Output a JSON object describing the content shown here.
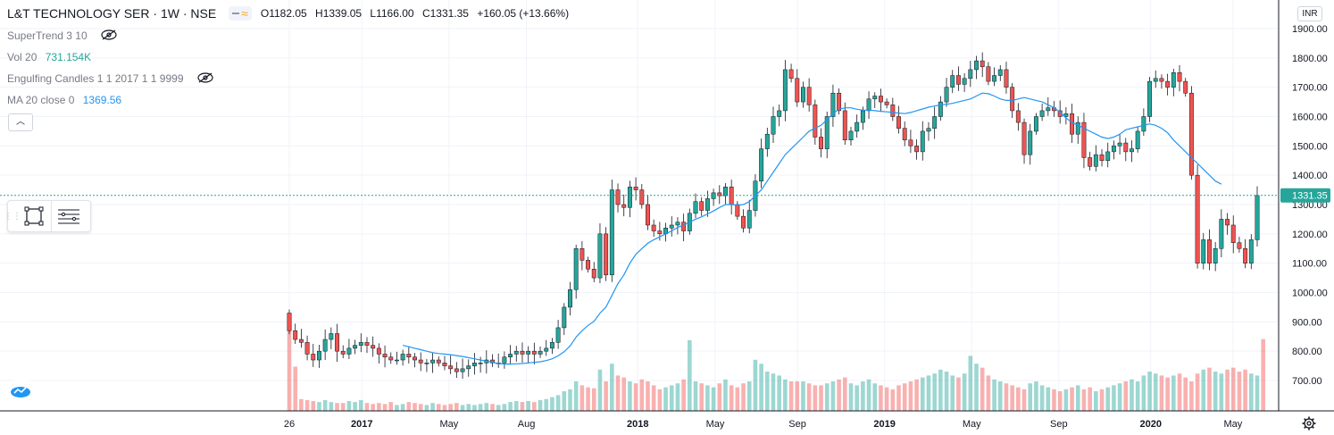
{
  "header": {
    "symbol": "L&T TECHNOLOGY SER · 1W · NSE",
    "ohlc": {
      "open": "O1182.05",
      "high": "H1339.05",
      "low": "L1166.00",
      "close": "C1331.35",
      "change": "+160.05 (+13.66%)"
    }
  },
  "indicators": [
    {
      "name": "SuperTrend 3 10",
      "value": "",
      "hidden": true
    },
    {
      "name": "Vol 20",
      "value": "731.154K",
      "hidden": false,
      "color": "#26a69a"
    },
    {
      "name": "Engulfing Candles 1 1 2017 1 1 9999",
      "value": "",
      "hidden": true
    },
    {
      "name": "MA 20 close 0",
      "value": "1369.56",
      "hidden": false,
      "color": "#2196f3"
    }
  ],
  "currency": "INR",
  "last_price_label": "1331.35",
  "colors": {
    "up": "#26a69a",
    "down": "#ef5350",
    "ma": "#2196f3",
    "grid": "#f0f3fa",
    "axis": "#131722"
  },
  "chart_data": {
    "type": "candlestick",
    "interval": "1W",
    "ylim": [
      600,
      1900
    ],
    "yticks": [
      "1900.00",
      "1800.00",
      "1700.00",
      "1600.00",
      "1500.00",
      "1400.00",
      "1300.00",
      "1200.00",
      "1100.00",
      "1000.00",
      "900.00",
      "800.00",
      "700.00"
    ],
    "xticks": [
      "26",
      "2017",
      "May",
      "Aug",
      "2018",
      "May",
      "Sep",
      "2019",
      "May",
      "Sep",
      "2020",
      "May"
    ],
    "close_series": [
      870,
      840,
      830,
      790,
      770,
      800,
      840,
      860,
      800,
      790,
      810,
      820,
      830,
      820,
      810,
      790,
      780,
      770,
      770,
      790,
      780,
      770,
      760,
      760,
      770,
      760,
      750,
      740,
      730,
      740,
      750,
      760,
      760,
      770,
      760,
      760,
      780,
      790,
      800,
      790,
      800,
      790,
      800,
      810,
      830,
      880,
      950,
      1010,
      1150,
      1110,
      1080,
      1050,
      1200,
      1060,
      1350,
      1300,
      1290,
      1360,
      1350,
      1300,
      1230,
      1210,
      1200,
      1220,
      1230,
      1240,
      1210,
      1270,
      1310,
      1280,
      1320,
      1340,
      1330,
      1360,
      1300,
      1260,
      1220,
      1280,
      1380,
      1490,
      1540,
      1600,
      1620,
      1760,
      1730,
      1650,
      1700,
      1640,
      1530,
      1490,
      1600,
      1680,
      1620,
      1520,
      1550,
      1580,
      1620,
      1660,
      1670,
      1650,
      1640,
      1600,
      1560,
      1520,
      1500,
      1480,
      1550,
      1560,
      1600,
      1650,
      1700,
      1740,
      1710,
      1730,
      1760,
      1790,
      1770,
      1720,
      1740,
      1760,
      1700,
      1620,
      1580,
      1470,
      1550,
      1600,
      1620,
      1630,
      1620,
      1600,
      1610,
      1540,
      1580,
      1460,
      1430,
      1470,
      1450,
      1480,
      1500,
      1510,
      1480,
      1490,
      1550,
      1600,
      1720,
      1730,
      1720,
      1700,
      1750,
      1720,
      1680,
      1400,
      1100,
      1180,
      1100,
      1150,
      1250,
      1230,
      1170,
      1150,
      1100,
      1180,
      1331
    ],
    "ma_series": [
      null,
      null,
      null,
      null,
      null,
      null,
      null,
      null,
      null,
      null,
      null,
      null,
      null,
      null,
      null,
      null,
      null,
      null,
      null,
      820,
      815,
      810,
      805,
      800,
      795,
      792,
      790,
      788,
      785,
      782,
      778,
      774,
      770,
      766,
      762,
      758,
      756,
      756,
      757,
      758,
      760,
      762,
      764,
      768,
      774,
      784,
      798,
      818,
      848,
      870,
      888,
      902,
      930,
      950,
      990,
      1030,
      1060,
      1100,
      1130,
      1150,
      1168,
      1180,
      1190,
      1200,
      1210,
      1222,
      1230,
      1240,
      1250,
      1258,
      1268,
      1278,
      1290,
      1300,
      1300,
      1298,
      1300,
      1310,
      1330,
      1350,
      1380,
      1410,
      1440,
      1470,
      1490,
      1510,
      1530,
      1550,
      1560,
      1570,
      1590,
      1610,
      1625,
      1630,
      1630,
      1625,
      1622,
      1622,
      1620,
      1618,
      1616,
      1614,
      1612,
      1610,
      1614,
      1620,
      1626,
      1632,
      1636,
      1640,
      1642,
      1645,
      1650,
      1655,
      1660,
      1670,
      1680,
      1678,
      1670,
      1660,
      1655,
      1655,
      1660,
      1665,
      1660,
      1655,
      1650,
      1640,
      1630,
      1615,
      1595,
      1580,
      1570,
      1560,
      1550,
      1540,
      1530,
      1525,
      1530,
      1540,
      1555,
      1560,
      1565,
      1570,
      1575,
      1570,
      1560,
      1545,
      1520,
      1500,
      1480,
      1460,
      1440,
      1420,
      1400,
      1380,
      1369.56
    ],
    "volume_series_k": [
      950,
      450,
      120,
      110,
      100,
      90,
      110,
      90,
      80,
      80,
      100,
      90,
      110,
      80,
      70,
      80,
      70,
      90,
      60,
      70,
      90,
      80,
      70,
      60,
      80,
      70,
      60,
      70,
      80,
      60,
      70,
      60,
      70,
      80,
      70,
      60,
      70,
      90,
      100,
      90,
      100,
      90,
      110,
      120,
      140,
      160,
      200,
      220,
      300,
      260,
      240,
      230,
      420,
      300,
      480,
      360,
      340,
      300,
      280,
      320,
      300,
      260,
      220,
      240,
      260,
      280,
      320,
      720,
      300,
      280,
      260,
      240,
      280,
      320,
      260,
      240,
      280,
      300,
      520,
      480,
      400,
      380,
      360,
      320,
      300,
      300,
      300,
      280,
      260,
      260,
      280,
      300,
      320,
      340,
      280,
      260,
      300,
      320,
      280,
      260,
      240,
      220,
      260,
      280,
      300,
      320,
      340,
      360,
      380,
      420,
      400,
      360,
      340,
      380,
      560,
      480,
      440,
      360,
      320,
      300,
      280,
      260,
      240,
      220,
      280,
      300,
      260,
      240,
      220,
      200,
      220,
      240,
      260,
      220,
      240,
      200,
      220,
      240,
      260,
      280,
      300,
      320,
      300,
      360,
      400,
      380,
      360,
      340,
      360,
      380,
      340,
      300,
      380,
      420,
      440,
      400,
      380,
      420,
      440,
      400,
      420,
      380,
      360,
      731
    ],
    "volume_scale_max_k": 1000,
    "last_price": 1331.35
  }
}
